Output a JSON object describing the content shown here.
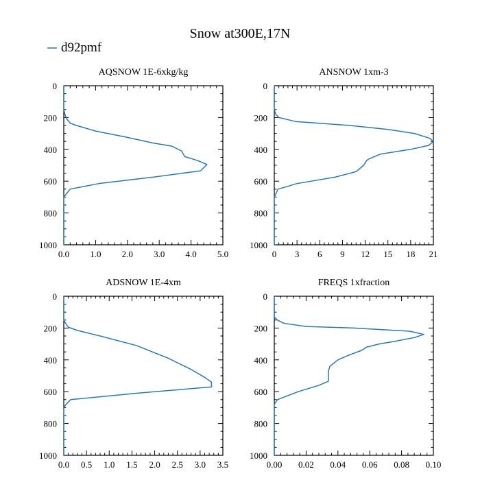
{
  "figure": {
    "title": "Snow at300E,17N",
    "legend": [
      {
        "name": "d92pmf",
        "color": "#2878b5"
      }
    ]
  },
  "chart_data": [
    {
      "type": "line",
      "title": "AQSNOW  1E-6xkg/kg",
      "xlim": [
        0,
        5
      ],
      "ylim": [
        1000,
        0
      ],
      "xticks": [
        "0.0",
        "1.0",
        "2.0",
        "3.0",
        "4.0",
        "5.0"
      ],
      "yticks": [
        "0",
        "200",
        "400",
        "600",
        "800",
        "1000"
      ],
      "series": [
        {
          "color": "#2878b5",
          "x": [
            0,
            0,
            0.05,
            0.1,
            0.2,
            0.4,
            1.0,
            2.0,
            2.8,
            3.4,
            3.7,
            3.8,
            4.2,
            4.5,
            4.3,
            2.8,
            1.1,
            0.2,
            0.08,
            0,
            0
          ],
          "y": [
            0,
            150,
            190,
            210,
            235,
            250,
            285,
            325,
            360,
            380,
            410,
            445,
            470,
            495,
            535,
            575,
            615,
            650,
            680,
            700,
            1000
          ]
        }
      ]
    },
    {
      "type": "line",
      "title": "ANSNOW  1xm-3",
      "xlim": [
        0,
        21
      ],
      "ylim": [
        1000,
        0
      ],
      "xticks": [
        "0",
        "3",
        "6",
        "9",
        "12",
        "15",
        "18",
        "21"
      ],
      "yticks": [
        "0",
        "200",
        "400",
        "600",
        "800",
        "1000"
      ],
      "series": [
        {
          "color": "#2878b5",
          "x": [
            0,
            0,
            0.2,
            0.6,
            2.8,
            10,
            15,
            18.5,
            20.5,
            21,
            20.4,
            18,
            14,
            12.5,
            12.2,
            11.8,
            10.8,
            8,
            3,
            0.5,
            0,
            0
          ],
          "y": [
            0,
            150,
            180,
            200,
            225,
            250,
            275,
            300,
            330,
            350,
            375,
            400,
            430,
            460,
            470,
            500,
            540,
            575,
            615,
            650,
            700,
            1000
          ]
        }
      ]
    },
    {
      "type": "line",
      "title": "ADSNOW  1E-4xm",
      "xlim": [
        0,
        3.5
      ],
      "ylim": [
        1000,
        0
      ],
      "xticks": [
        "0.0",
        "0.5",
        "1.0",
        "1.5",
        "2.0",
        "2.5",
        "3.0",
        "3.5"
      ],
      "yticks": [
        "0",
        "200",
        "400",
        "600",
        "800",
        "1000"
      ],
      "series": [
        {
          "color": "#2878b5",
          "x": [
            0,
            0,
            0.05,
            0.1,
            0.3,
            0.8,
            1.6,
            2.3,
            2.8,
            3.1,
            3.25,
            3.25,
            1.6,
            0.15,
            0.05,
            0,
            0
          ],
          "y": [
            0,
            150,
            175,
            195,
            215,
            250,
            310,
            390,
            460,
            510,
            540,
            570,
            610,
            650,
            680,
            700,
            1000
          ]
        }
      ]
    },
    {
      "type": "line",
      "title": "FREQS  1xfraction",
      "xlim": [
        0,
        0.1
      ],
      "ylim": [
        1000,
        0
      ],
      "xticks": [
        "0.00",
        "0.02",
        "0.04",
        "0.06",
        "0.08",
        "0.10"
      ],
      "yticks": [
        "0",
        "200",
        "400",
        "600",
        "800",
        "1000"
      ],
      "series": [
        {
          "color": "#2878b5",
          "x": [
            0,
            0,
            0.002,
            0.006,
            0.02,
            0.05,
            0.085,
            0.094,
            0.088,
            0.075,
            0.066,
            0.058,
            0.055,
            0.047,
            0.04,
            0.035,
            0.034,
            0.034,
            0.028,
            0.015,
            0.002,
            0,
            0
          ],
          "y": [
            0,
            130,
            150,
            170,
            190,
            200,
            220,
            240,
            260,
            285,
            300,
            320,
            340,
            370,
            400,
            440,
            470,
            535,
            560,
            600,
            650,
            680,
            1000
          ]
        }
      ]
    }
  ]
}
